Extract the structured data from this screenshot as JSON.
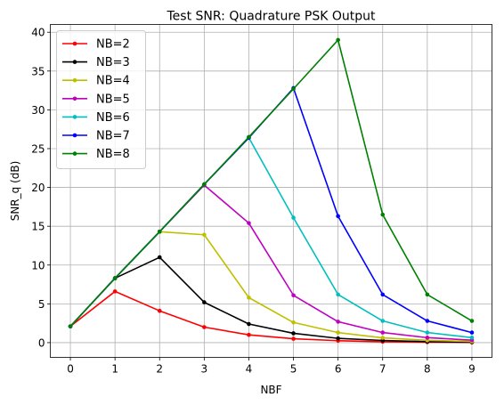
{
  "chart_data": {
    "type": "line",
    "title": "Test SNR: Quadrature PSK Output",
    "xlabel": "NBF",
    "ylabel": "SNR_q (dB)",
    "xlim": [
      -0.45,
      9.45
    ],
    "ylim": [
      -1.9,
      41.0
    ],
    "x_ticks": [
      0,
      1,
      2,
      3,
      4,
      5,
      6,
      7,
      8,
      9
    ],
    "y_ticks": [
      0,
      5,
      10,
      15,
      20,
      25,
      30,
      35,
      40
    ],
    "grid": true,
    "legend_position": "upper-left",
    "markers": "dot",
    "series": [
      {
        "name": "NB=2",
        "color": "#ff0000",
        "x": [
          0,
          1,
          2,
          3,
          4,
          5,
          6,
          7,
          8,
          9
        ],
        "y": [
          2.1,
          6.6,
          4.1,
          2.0,
          1.0,
          0.5,
          0.25,
          0.12,
          0.06,
          0.03
        ]
      },
      {
        "name": "NB=3",
        "color": "#000000",
        "x": [
          0,
          1,
          2,
          3,
          4,
          5,
          6,
          7,
          8,
          9
        ],
        "y": [
          2.1,
          8.3,
          11.0,
          5.2,
          2.4,
          1.2,
          0.55,
          0.28,
          0.13,
          0.06
        ]
      },
      {
        "name": "NB=4",
        "color": "#bfbf00",
        "x": [
          0,
          1,
          2,
          3,
          4,
          5,
          6,
          7,
          8,
          9
        ],
        "y": [
          2.1,
          8.3,
          14.3,
          13.9,
          5.8,
          2.6,
          1.3,
          0.62,
          0.3,
          0.15
        ]
      },
      {
        "name": "NB=5",
        "color": "#bf00bf",
        "x": [
          0,
          1,
          2,
          3,
          4,
          5,
          6,
          7,
          8,
          9
        ],
        "y": [
          2.1,
          8.3,
          14.3,
          20.3,
          15.4,
          6.1,
          2.7,
          1.3,
          0.64,
          0.32
        ]
      },
      {
        "name": "NB=6",
        "color": "#00bfbf",
        "x": [
          0,
          1,
          2,
          3,
          4,
          5,
          6,
          7,
          8,
          9
        ],
        "y": [
          2.1,
          8.3,
          14.3,
          20.4,
          26.4,
          16.1,
          6.2,
          2.8,
          1.3,
          0.65
        ]
      },
      {
        "name": "NB=7",
        "color": "#0000ff",
        "x": [
          0,
          1,
          2,
          3,
          4,
          5,
          6,
          7,
          8,
          9
        ],
        "y": [
          2.1,
          8.3,
          14.3,
          20.4,
          26.4,
          32.8,
          16.3,
          6.2,
          2.8,
          1.3
        ]
      },
      {
        "name": "NB=8",
        "color": "#008000",
        "x": [
          0,
          1,
          2,
          3,
          4,
          5,
          6,
          7,
          8,
          9
        ],
        "y": [
          2.1,
          8.3,
          14.3,
          20.4,
          26.5,
          32.7,
          39.0,
          16.5,
          6.2,
          2.8
        ]
      }
    ]
  }
}
